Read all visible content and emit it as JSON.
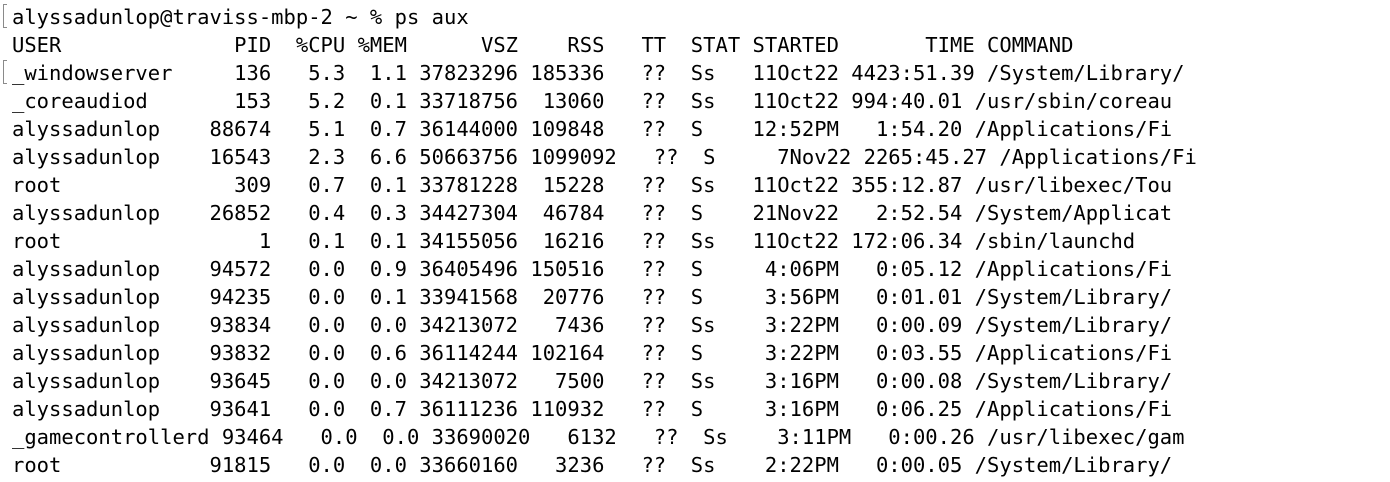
{
  "prompt": "alyssadunlop@traviss-mbp-2 ~ % ps aux",
  "header": "USER              PID  %CPU %MEM      VSZ    RSS   TT  STAT STARTED       TIME COMMAND",
  "rows": [
    "_windowserver     136   5.3  1.1 37823296 185336   ??  Ss   11Oct22 4423:51.39 /System/Library/",
    "_coreaudiod       153   5.2  0.1 33718756  13060   ??  Ss   11Oct22 994:40.01 /usr/sbin/coreau",
    "alyssadunlop    88674   5.1  0.7 36144000 109848   ??  S    12:52PM   1:54.20 /Applications/Fi",
    "alyssadunlop    16543   2.3  6.6 50663756 1099092   ??  S     7Nov22 2265:45.27 /Applications/Fi",
    "root              309   0.7  0.1 33781228  15228   ??  Ss   11Oct22 355:12.87 /usr/libexec/Tou",
    "alyssadunlop    26852   0.4  0.3 34427304  46784   ??  S    21Nov22   2:52.54 /System/Applicat",
    "root                1   0.1  0.1 34155056  16216   ??  Ss   11Oct22 172:06.34 /sbin/launchd",
    "alyssadunlop    94572   0.0  0.9 36405496 150516   ??  S     4:06PM   0:05.12 /Applications/Fi",
    "alyssadunlop    94235   0.0  0.1 33941568  20776   ??  S     3:56PM   0:01.01 /System/Library/",
    "alyssadunlop    93834   0.0  0.0 34213072   7436   ??  Ss    3:22PM   0:00.09 /System/Library/",
    "alyssadunlop    93832   0.0  0.6 36114244 102164   ??  S     3:22PM   0:03.55 /Applications/Fi",
    "alyssadunlop    93645   0.0  0.0 34213072   7500   ??  Ss    3:16PM   0:00.08 /System/Library/",
    "alyssadunlop    93641   0.0  0.7 36111236 110932   ??  S     3:16PM   0:06.25 /Applications/Fi",
    "_gamecontrollerd 93464   0.0  0.0 33690020   6132   ??  Ss    3:11PM   0:00.26 /usr/libexec/gam",
    "root            91815   0.0  0.0 33660160   3236   ??  Ss    2:22PM   0:00.05 /System/Library/"
  ]
}
